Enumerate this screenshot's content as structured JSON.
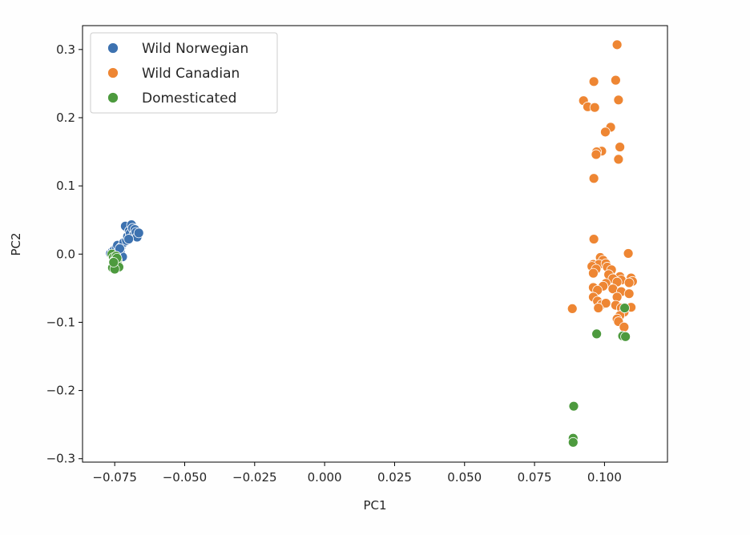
{
  "chart_data": {
    "type": "scatter",
    "title": "",
    "xlabel": "PC1",
    "ylabel": "PC2",
    "xlim": [
      -0.0865,
      0.1225
    ],
    "ylim": [
      -0.305,
      0.335
    ],
    "xticks": [
      -0.075,
      -0.05,
      -0.025,
      0.0,
      0.025,
      0.05,
      0.075,
      0.1
    ],
    "xtick_labels": [
      "−0.075",
      "−0.050",
      "−0.025",
      "0.000",
      "0.025",
      "0.050",
      "0.075",
      "0.100"
    ],
    "yticks": [
      -0.3,
      -0.2,
      -0.1,
      0.0,
      0.1,
      0.2,
      0.3
    ],
    "ytick_labels": [
      "−0.3",
      "−0.2",
      "−0.1",
      "0.0",
      "0.1",
      "0.2",
      "0.3"
    ],
    "grid": false,
    "legend_position": "top-left",
    "series": [
      {
        "name": "Wild Norwegian",
        "color": "#3d72b0",
        "points": [
          [
            -0.0765,
            0.001
          ],
          [
            -0.0758,
            0.004
          ],
          [
            -0.0752,
            0.006
          ],
          [
            -0.0748,
            0.002
          ],
          [
            -0.0744,
            0.01
          ],
          [
            -0.074,
            0.013
          ],
          [
            -0.0735,
            -0.001
          ],
          [
            -0.073,
            0.004
          ],
          [
            -0.0728,
            0.01
          ],
          [
            -0.0722,
            -0.004
          ],
          [
            -0.0718,
            0.017
          ],
          [
            -0.0712,
            0.041
          ],
          [
            -0.0708,
            0.02
          ],
          [
            -0.0704,
            0.026
          ],
          [
            -0.0698,
            0.034
          ],
          [
            -0.0695,
            0.03
          ],
          [
            -0.069,
            0.043
          ],
          [
            -0.0686,
            0.038
          ],
          [
            -0.0682,
            0.028
          ],
          [
            -0.0678,
            0.036
          ],
          [
            -0.0674,
            0.032
          ],
          [
            -0.067,
            0.025
          ],
          [
            -0.0664,
            0.031
          ],
          [
            -0.07,
            0.022
          ],
          [
            -0.0732,
            0.008
          ],
          [
            -0.0745,
            -0.006
          ]
        ]
      },
      {
        "name": "Wild Canadian",
        "color": "#ee8633",
        "points": [
          [
            0.1045,
            0.307
          ],
          [
            0.0962,
            0.253
          ],
          [
            0.104,
            0.255
          ],
          [
            0.0925,
            0.225
          ],
          [
            0.105,
            0.226
          ],
          [
            0.094,
            0.216
          ],
          [
            0.0965,
            0.215
          ],
          [
            0.1022,
            0.186
          ],
          [
            0.1003,
            0.179
          ],
          [
            0.1055,
            0.157
          ],
          [
            0.099,
            0.151
          ],
          [
            0.0972,
            0.15
          ],
          [
            0.097,
            0.146
          ],
          [
            0.105,
            0.139
          ],
          [
            0.0962,
            0.111
          ],
          [
            0.0962,
            0.022
          ],
          [
            0.1085,
            0.001
          ],
          [
            0.0985,
            -0.005
          ],
          [
            0.0995,
            -0.009
          ],
          [
            0.096,
            -0.015
          ],
          [
            0.098,
            -0.015
          ],
          [
            0.1005,
            -0.014
          ],
          [
            0.0955,
            -0.018
          ],
          [
            0.097,
            -0.022
          ],
          [
            0.101,
            -0.019
          ],
          [
            0.1025,
            -0.023
          ],
          [
            0.096,
            -0.028
          ],
          [
            0.1015,
            -0.03
          ],
          [
            0.1055,
            -0.033
          ],
          [
            0.1095,
            -0.035
          ],
          [
            0.103,
            -0.036
          ],
          [
            0.106,
            -0.038
          ],
          [
            0.11,
            -0.04
          ],
          [
            0.1088,
            -0.042
          ],
          [
            0.1045,
            -0.041
          ],
          [
            0.1005,
            -0.043
          ],
          [
            0.0995,
            -0.047
          ],
          [
            0.096,
            -0.049
          ],
          [
            0.0975,
            -0.053
          ],
          [
            0.103,
            -0.051
          ],
          [
            0.106,
            -0.055
          ],
          [
            0.1088,
            -0.058
          ],
          [
            0.096,
            -0.063
          ],
          [
            0.1045,
            -0.063
          ],
          [
            0.0975,
            -0.069
          ],
          [
            0.099,
            -0.074
          ],
          [
            0.1005,
            -0.072
          ],
          [
            0.104,
            -0.075
          ],
          [
            0.0978,
            -0.079
          ],
          [
            0.106,
            -0.079
          ],
          [
            0.1095,
            -0.078
          ],
          [
            0.0885,
            -0.08
          ],
          [
            0.107,
            -0.085
          ],
          [
            0.1055,
            -0.09
          ],
          [
            0.1045,
            -0.095
          ],
          [
            0.105,
            -0.099
          ],
          [
            0.107,
            -0.107
          ]
        ]
      },
      {
        "name": "Domesticated",
        "color": "#4d9a3e",
        "points": [
          [
            -0.076,
            0.0
          ],
          [
            -0.0755,
            -0.005
          ],
          [
            -0.0752,
            -0.01
          ],
          [
            -0.0748,
            -0.014
          ],
          [
            -0.0758,
            -0.02
          ],
          [
            -0.0745,
            -0.003
          ],
          [
            -0.074,
            -0.009
          ],
          [
            -0.0738,
            -0.016
          ],
          [
            -0.0735,
            -0.019
          ],
          [
            -0.075,
            -0.022
          ],
          [
            -0.0742,
            -0.006
          ],
          [
            -0.0754,
            -0.012
          ],
          [
            0.1072,
            -0.079
          ],
          [
            0.0972,
            -0.117
          ],
          [
            0.1065,
            -0.12
          ],
          [
            0.1075,
            -0.121
          ],
          [
            0.089,
            -0.223
          ],
          [
            0.0888,
            -0.27
          ],
          [
            0.0888,
            -0.276
          ]
        ]
      }
    ]
  }
}
